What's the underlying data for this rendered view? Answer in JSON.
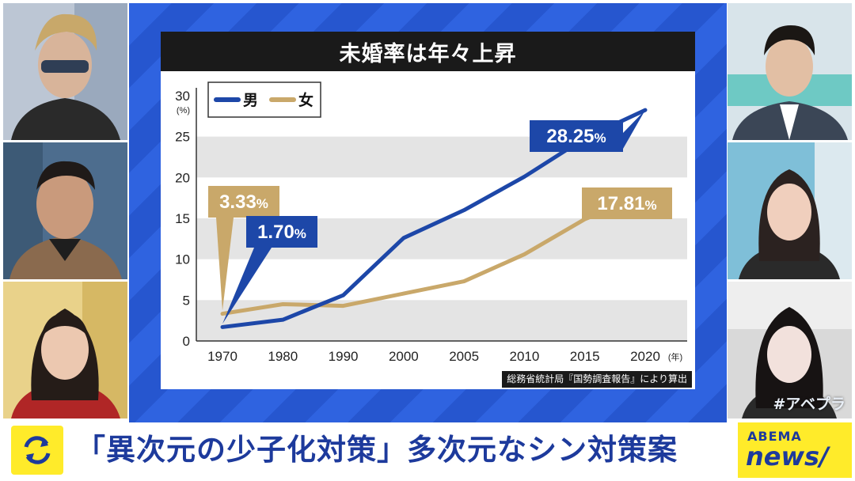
{
  "title": "未婚率は年々上昇",
  "source": "総務省統計局『国勢調査報告』により算出",
  "caption": "「異次元の少子化対策」多次元なシン対策案",
  "watermark": "#アベプラ",
  "logo": {
    "top": "ABEMA",
    "bottom": "news/"
  },
  "colors": {
    "male": "#1d47a8",
    "female": "#c9a86a",
    "accent_yellow": "#ffeb2a",
    "studio_blue": "#2f63e0"
  },
  "chart_data": {
    "type": "line",
    "x": [
      1970,
      1980,
      1990,
      2000,
      2005,
      2010,
      2015,
      2020
    ],
    "x_unit": "(年)",
    "y_unit": "(%)",
    "ylim": [
      0,
      30
    ],
    "yticks": [
      0,
      5,
      10,
      15,
      20,
      25,
      30
    ],
    "series": [
      {
        "name": "男",
        "color": "#1d47a8",
        "values": [
          1.7,
          2.6,
          5.6,
          12.6,
          16.0,
          20.1,
          24.8,
          28.25
        ]
      },
      {
        "name": "女",
        "color": "#c9a86a",
        "values": [
          3.33,
          4.5,
          4.3,
          5.8,
          7.3,
          10.6,
          14.9,
          17.81
        ]
      }
    ],
    "annotations": [
      {
        "series": "女",
        "x": 1970,
        "number": "3.33",
        "unit": "%"
      },
      {
        "series": "男",
        "x": 1970,
        "number": "1.70",
        "unit": "%"
      },
      {
        "series": "男",
        "x": 2020,
        "number": "28.25",
        "unit": "%"
      },
      {
        "series": "女",
        "x": 2020,
        "number": "17.81",
        "unit": "%"
      }
    ],
    "legend_position": "top-left",
    "grid": "horizontal bands"
  }
}
